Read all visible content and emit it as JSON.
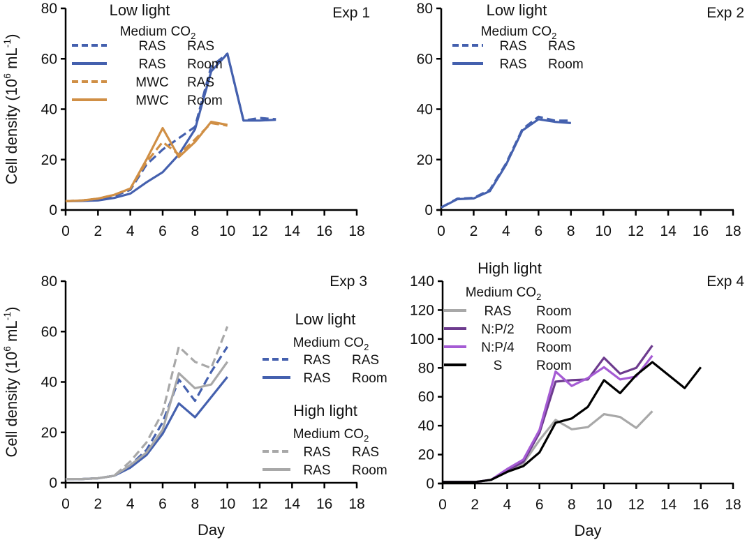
{
  "chart_data": [
    {
      "type": "line",
      "panel": "Exp 1",
      "title": "Exp 1",
      "xlabel": "",
      "ylabel": "Cell density (10^6 mL^-1)",
      "ylabel_parts": {
        "main": "Cell density (10",
        "sup1": "6",
        "mid": " mL",
        "sup2": "-1",
        "end": ")"
      },
      "xlim": [
        0,
        18
      ],
      "ylim": [
        0,
        80
      ],
      "xticks": [
        0,
        2,
        4,
        6,
        8,
        10,
        12,
        14,
        16,
        18
      ],
      "yticks": [
        0,
        20,
        40,
        60,
        80
      ],
      "grid": false,
      "legend": {
        "placement": "top-left",
        "title": "Low light",
        "headers": [
          "Medium",
          "CO",
          "2"
        ],
        "entries": [
          {
            "medium": "RAS",
            "co2": "RAS",
            "series": 0
          },
          {
            "medium": "RAS",
            "co2": "Room",
            "series": 1
          },
          {
            "medium": "MWC",
            "co2": "RAS",
            "series": 2
          },
          {
            "medium": "MWC",
            "co2": "Room",
            "series": 3
          }
        ]
      },
      "series": [
        {
          "name": "Low light RAS medium, RAS CO2",
          "color": "#4460ae",
          "dashed": true,
          "x": [
            0,
            1,
            2,
            3,
            4,
            5,
            6,
            7,
            8,
            9,
            10,
            11,
            12,
            13
          ],
          "y": [
            3.5,
            3.8,
            4.3,
            5.5,
            8.0,
            18.0,
            24.0,
            28.5,
            33.0,
            57.0,
            62.0,
            35.5,
            36.5,
            36.0
          ]
        },
        {
          "name": "Low light RAS medium, Room CO2",
          "color": "#4460ae",
          "dashed": false,
          "x": [
            0,
            1,
            2,
            3,
            4,
            5,
            6,
            7,
            8,
            9,
            10,
            11,
            12,
            13
          ],
          "y": [
            3.5,
            3.6,
            3.8,
            4.8,
            6.5,
            11.0,
            15.0,
            22.0,
            32.0,
            55.0,
            62.0,
            35.5,
            35.5,
            35.8
          ]
        },
        {
          "name": "Low light MWC medium, RAS CO2",
          "color": "#d08f45",
          "dashed": true,
          "x": [
            0,
            1,
            2,
            3,
            4,
            5,
            6,
            7,
            8,
            9,
            10
          ],
          "y": [
            3.5,
            3.8,
            4.5,
            6.0,
            8.5,
            19.0,
            27.0,
            22.0,
            28.0,
            34.5,
            33.5
          ]
        },
        {
          "name": "Low light MWC medium, Room CO2",
          "color": "#d08f45",
          "dashed": false,
          "x": [
            0,
            1,
            2,
            3,
            4,
            5,
            6,
            7,
            8,
            9,
            10
          ],
          "y": [
            3.5,
            3.8,
            4.5,
            6.0,
            8.5,
            20.0,
            32.5,
            21.0,
            27.0,
            35.0,
            33.8
          ]
        }
      ]
    },
    {
      "type": "line",
      "panel": "Exp 2",
      "title": "Exp 2",
      "xlabel": "",
      "ylabel": "",
      "xlim": [
        0,
        18
      ],
      "ylim": [
        0,
        80
      ],
      "xticks": [
        0,
        2,
        4,
        6,
        8,
        10,
        12,
        14,
        16,
        18
      ],
      "yticks": [
        0,
        20,
        40,
        60,
        80
      ],
      "grid": false,
      "legend": {
        "placement": "top-left",
        "title": "Low light",
        "headers": [
          "Medium",
          "CO",
          "2"
        ],
        "entries": [
          {
            "medium": "RAS",
            "co2": "RAS",
            "series": 0
          },
          {
            "medium": "RAS",
            "co2": "Room",
            "series": 1
          }
        ]
      },
      "series": [
        {
          "name": "Low light RAS medium, RAS CO2",
          "color": "#4460ae",
          "dashed": true,
          "x": [
            0,
            1,
            2,
            3,
            4,
            5,
            6,
            7,
            8
          ],
          "y": [
            1.0,
            4.5,
            4.8,
            8.0,
            18.5,
            32.0,
            37.0,
            35.5,
            35.5
          ]
        },
        {
          "name": "Low light RAS medium, Room CO2",
          "color": "#4460ae",
          "dashed": false,
          "x": [
            0,
            1,
            2,
            3,
            4,
            5,
            6,
            7,
            8
          ],
          "y": [
            1.0,
            4.3,
            4.6,
            7.5,
            18.0,
            31.5,
            36.0,
            35.0,
            34.5
          ]
        }
      ]
    },
    {
      "type": "line",
      "panel": "Exp 3",
      "title": "Exp 3",
      "xlabel": "Day",
      "ylabel": "Cell density (10^6 mL^-1)",
      "ylabel_parts": {
        "main": "Cell density (10",
        "sup1": "6",
        "mid": " mL",
        "sup2": "-1",
        "end": ")"
      },
      "xlim": [
        0,
        18
      ],
      "ylim": [
        0,
        80
      ],
      "xticks": [
        0,
        2,
        4,
        6,
        8,
        10,
        12,
        14,
        16,
        18
      ],
      "yticks": [
        0,
        20,
        40,
        60,
        80
      ],
      "grid": false,
      "legend": {
        "placement": "right",
        "groups": [
          {
            "title": "Low light",
            "headers": [
              "Medium",
              "CO",
              "2"
            ],
            "entries": [
              {
                "medium": "RAS",
                "co2": "RAS",
                "series": 0
              },
              {
                "medium": "RAS",
                "co2": "Room",
                "series": 1
              }
            ]
          },
          {
            "title": "High light",
            "headers": [
              "Medium",
              "CO",
              "2"
            ],
            "entries": [
              {
                "medium": "RAS",
                "co2": "RAS",
                "series": 2
              },
              {
                "medium": "RAS",
                "co2": "Room",
                "series": 3
              }
            ]
          }
        ]
      },
      "series": [
        {
          "name": "Low light RAS medium, RAS CO2",
          "color": "#4460ae",
          "dashed": true,
          "x": [
            0,
            1,
            2,
            3,
            4,
            5,
            6,
            7,
            8,
            9,
            10
          ],
          "y": [
            1.5,
            1.5,
            1.8,
            2.8,
            7.0,
            13.0,
            24.0,
            41.0,
            32.5,
            44.0,
            54.0
          ]
        },
        {
          "name": "Low light RAS medium, Room CO2",
          "color": "#4460ae",
          "dashed": false,
          "x": [
            0,
            1,
            2,
            3,
            4,
            5,
            6,
            7,
            8,
            9,
            10
          ],
          "y": [
            1.5,
            1.5,
            1.8,
            2.8,
            6.0,
            11.0,
            19.5,
            31.5,
            26.0,
            34.0,
            42.0
          ]
        },
        {
          "name": "High light RAS medium, RAS CO2",
          "color": "#a8a8a8",
          "dashed": true,
          "x": [
            0,
            1,
            2,
            3,
            4,
            5,
            6,
            7,
            8,
            9,
            10
          ],
          "y": [
            1.5,
            1.5,
            1.8,
            2.8,
            8.5,
            16.0,
            28.0,
            54.0,
            48.0,
            45.5,
            62.0
          ]
        },
        {
          "name": "High light RAS medium, Room CO2",
          "color": "#a8a8a8",
          "dashed": false,
          "x": [
            0,
            1,
            2,
            3,
            4,
            5,
            6,
            7,
            8,
            9,
            10
          ],
          "y": [
            1.5,
            1.5,
            1.8,
            2.8,
            7.0,
            12.0,
            21.0,
            43.5,
            37.5,
            39.0,
            48.0
          ]
        }
      ]
    },
    {
      "type": "line",
      "panel": "Exp 4",
      "title": "Exp 4",
      "xlabel": "Day",
      "ylabel": "",
      "xlim": [
        0,
        18
      ],
      "ylim": [
        0,
        140
      ],
      "xticks": [
        0,
        2,
        4,
        6,
        8,
        10,
        12,
        14,
        16,
        18
      ],
      "yticks": [
        0,
        20,
        40,
        60,
        80,
        100,
        120,
        140
      ],
      "grid": false,
      "legend": {
        "placement": "top-left",
        "title": "High light",
        "headers": [
          "Medium",
          "CO",
          "2"
        ],
        "entries": [
          {
            "medium": "RAS",
            "co2": "Room",
            "series": 0
          },
          {
            "medium": "N:P/2",
            "co2": "Room",
            "series": 1
          },
          {
            "medium": "N:P/4",
            "co2": "Room",
            "series": 2
          },
          {
            "medium": "S",
            "co2": "Room",
            "series": 3
          }
        ]
      },
      "series": [
        {
          "name": "High light RAS medium, Room CO2",
          "color": "#a8a8a8",
          "dashed": false,
          "x": [
            0,
            1,
            2,
            3,
            4,
            5,
            6,
            7,
            8,
            9,
            10,
            11,
            12,
            13
          ],
          "y": [
            1.0,
            1.0,
            1.0,
            2.5,
            8.0,
            14.0,
            30.0,
            44.0,
            37.5,
            39.0,
            48.0,
            46.0,
            38.5,
            50.0
          ]
        },
        {
          "name": "High light N:P/2 medium, Room CO2",
          "color": "#6d3b8e",
          "dashed": false,
          "x": [
            0,
            1,
            2,
            3,
            4,
            5,
            6,
            7,
            8,
            9,
            10,
            11,
            12,
            13
          ],
          "y": [
            1.0,
            1.0,
            1.0,
            2.5,
            9.0,
            15.0,
            35.0,
            70.5,
            71.5,
            72.0,
            87.0,
            76.0,
            80.0,
            95.5
          ]
        },
        {
          "name": "High light N:P/4 medium, Room CO2",
          "color": "#a55bd4",
          "dashed": false,
          "x": [
            0,
            1,
            2,
            3,
            4,
            5,
            6,
            7,
            8,
            9,
            10,
            11,
            12,
            13
          ],
          "y": [
            1.0,
            1.0,
            1.0,
            2.5,
            10.0,
            16.5,
            37.0,
            77.5,
            67.5,
            73.0,
            80.5,
            72.0,
            74.0,
            88.5
          ]
        },
        {
          "name": "High light S medium, Room CO2",
          "color": "#000000",
          "dashed": false,
          "x": [
            0,
            1,
            2,
            3,
            4,
            5,
            6,
            7,
            8,
            9,
            10,
            11,
            12,
            13,
            15,
            16
          ],
          "y": [
            1.0,
            1.0,
            1.0,
            2.5,
            8.0,
            12.0,
            21.5,
            42.0,
            45.0,
            53.0,
            71.5,
            62.5,
            75.0,
            84.0,
            66.0,
            80.5
          ]
        }
      ]
    }
  ]
}
